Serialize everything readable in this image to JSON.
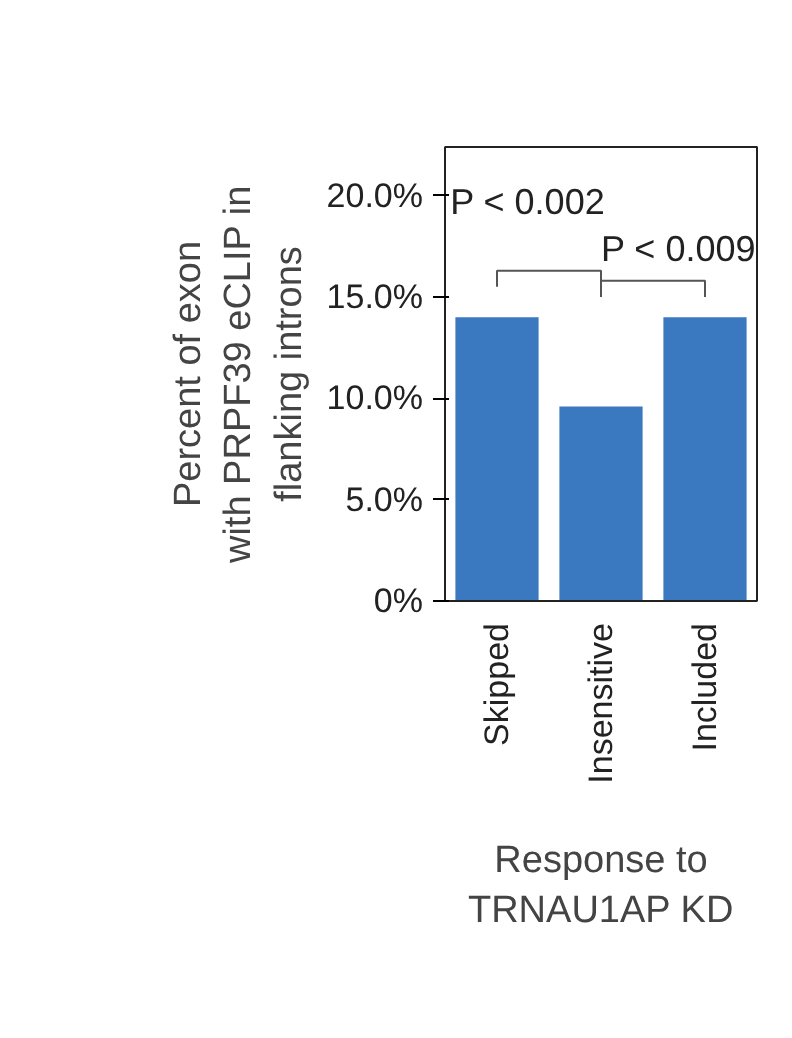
{
  "chart_data": {
    "type": "bar",
    "categories": [
      "Skipped",
      "Insensitive",
      "Included"
    ],
    "values": [
      14.0,
      9.6,
      14.0
    ],
    "color": "#3a78bf",
    "ylim": [
      0,
      22.4
    ],
    "yticks": [
      {
        "value": 0,
        "label": "0%"
      },
      {
        "value": 5,
        "label": "5.0%"
      },
      {
        "value": 10,
        "label": "10.0%"
      },
      {
        "value": 15,
        "label": "15.0%"
      },
      {
        "value": 20,
        "label": "20.0%"
      }
    ],
    "ylabel": "Percent of exon\nwith PRPF39 eCLIP in\nflanking introns",
    "xlabel": "Response to\nTRNAU1AP KD",
    "annotations": [
      "P < 0.002",
      "P < 0.009"
    ]
  }
}
